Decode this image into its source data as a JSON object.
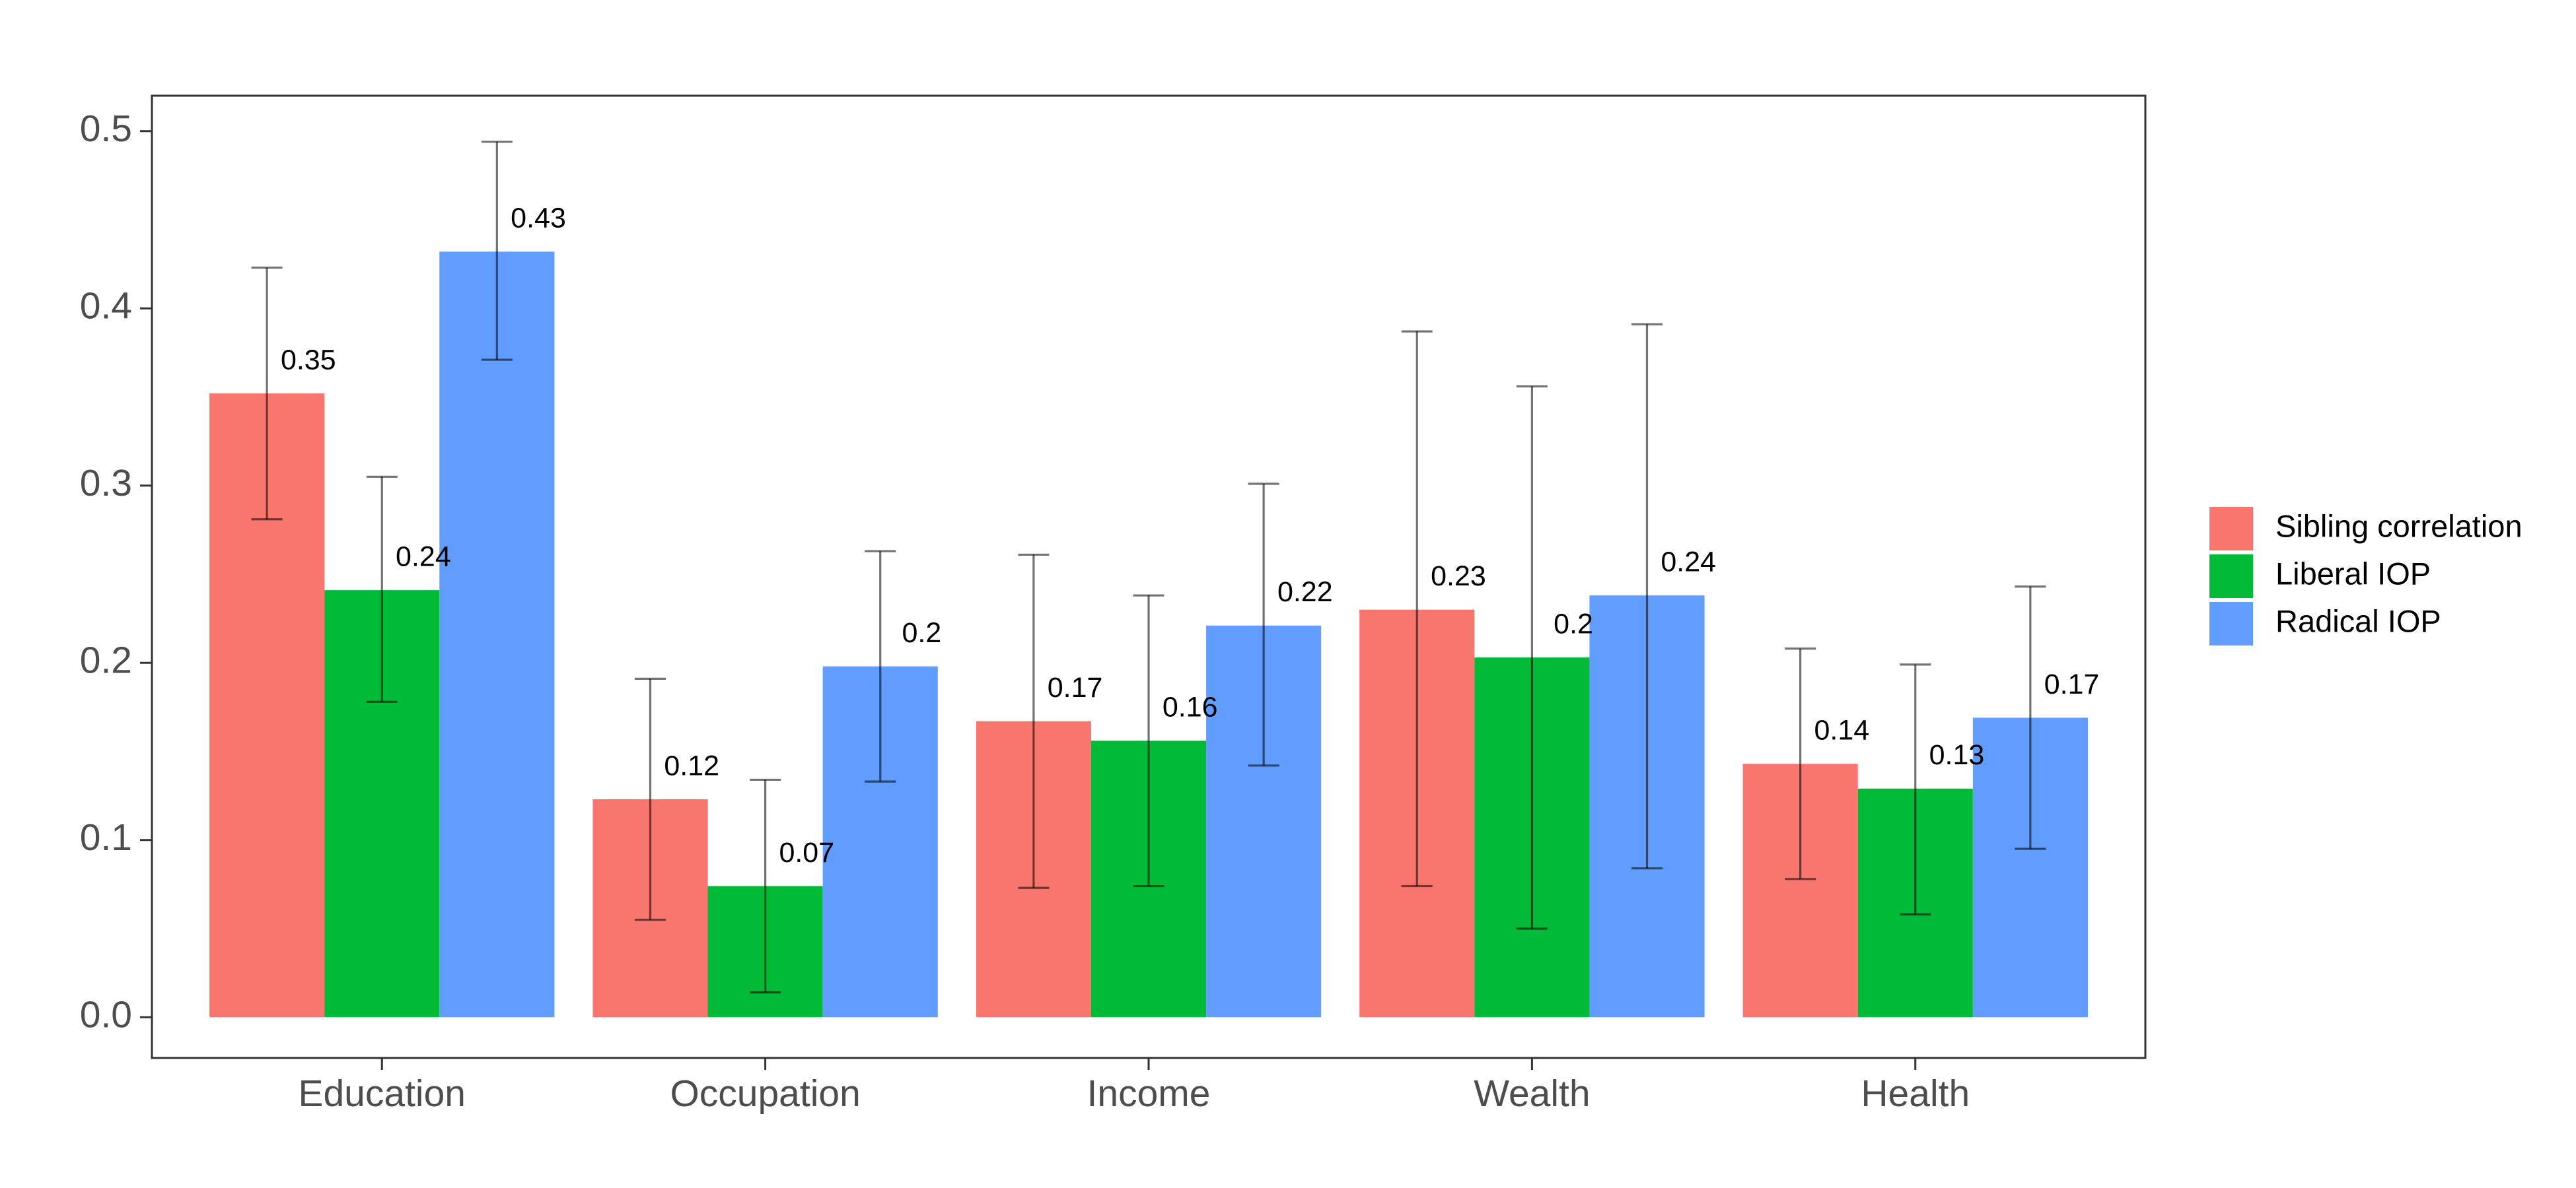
{
  "chart_data": {
    "type": "bar",
    "categories": [
      "Education",
      "Occupation",
      "Income",
      "Wealth",
      "Health"
    ],
    "series": [
      {
        "name": "Sibling correlation",
        "color": "#F8766D",
        "values": [
          0.352,
          0.123,
          0.167,
          0.23,
          0.143
        ],
        "labels": [
          "0.35",
          "0.12",
          "0.17",
          "0.23",
          "0.14"
        ],
        "err_low": [
          0.281,
          0.055,
          0.073,
          0.074,
          0.078
        ],
        "err_high": [
          0.423,
          0.191,
          0.261,
          0.387,
          0.208
        ]
      },
      {
        "name": "Liberal IOP",
        "color": "#00BA38",
        "values": [
          0.241,
          0.074,
          0.156,
          0.203,
          0.129
        ],
        "labels": [
          "0.24",
          "0.07",
          "0.16",
          "0.2",
          "0.13"
        ],
        "err_low": [
          0.178,
          0.014,
          0.074,
          0.05,
          0.058
        ],
        "err_high": [
          0.305,
          0.134,
          0.238,
          0.356,
          0.199
        ]
      },
      {
        "name": "Radical IOP",
        "color": "#619CFF",
        "values": [
          0.432,
          0.198,
          0.221,
          0.238,
          0.169
        ],
        "labels": [
          "0.43",
          "0.2",
          "0.22",
          "0.24",
          "0.17"
        ],
        "err_low": [
          0.371,
          0.133,
          0.142,
          0.084,
          0.095
        ],
        "err_high": [
          0.494,
          0.263,
          0.301,
          0.391,
          0.243
        ]
      }
    ],
    "yticks": [
      "0.0",
      "0.1",
      "0.2",
      "0.3",
      "0.4",
      "0.5"
    ],
    "ylim": [
      -0.023,
      0.52
    ],
    "title": "",
    "xlabel": "",
    "ylabel": "",
    "legend_position": "right",
    "grid": false
  }
}
